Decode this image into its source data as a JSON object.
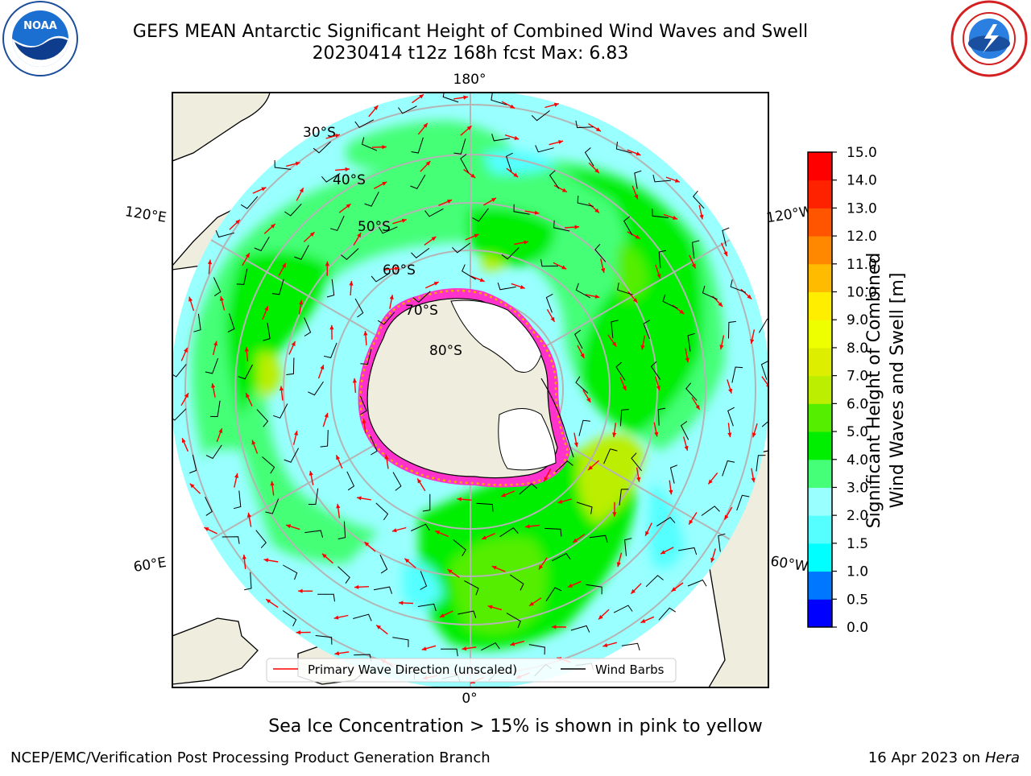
{
  "title": {
    "line1": "GEFS MEAN Antarctic Significant Height of Combined Wind Waves and Swell",
    "line2": "20230414 t12z 168h fcst   Max: 6.83"
  },
  "logos": {
    "left": {
      "icon": "noaa-logo",
      "text": "NOAA",
      "ring_text": "NATIONAL OCEANIC AND ATMOSPHERIC ADMINISTRATION · U.S. DEPARTMENT OF COMMERCE"
    },
    "right": {
      "icon": "nws-logo",
      "ring_text": "NATIONAL WEATHER SERVICE"
    }
  },
  "map": {
    "projection": "south-polar-stereographic",
    "longitude_labels": [
      "180°",
      "120°E",
      "120°W",
      "60°E",
      "60°W",
      "0°"
    ],
    "latitude_labels": [
      "30°S",
      "40°S",
      "50°S",
      "60°S",
      "70°S",
      "80°S"
    ],
    "land_color": "#efedde",
    "ice_shelf_color": "#ffffff",
    "sea_ice_colors": [
      "#ff33cc",
      "#ffa500",
      "#ffff66"
    ]
  },
  "legend": {
    "wave_label": "Primary Wave Direction (unscaled)",
    "wind_label": "Wind Barbs",
    "wave_color": "#ff0000",
    "wind_color": "#000000"
  },
  "colorbar": {
    "label_line1": "Significant Height of Combined",
    "label_line2": "Wind Waves and Swell [m]",
    "ticks": [
      "0.0",
      "0.5",
      "1.0",
      "1.5",
      "2.0",
      "3.0",
      "4.0",
      "5.0",
      "6.0",
      "7.0",
      "8.0",
      "9.0",
      "10.0",
      "11.0",
      "12.0",
      "13.0",
      "14.0",
      "15.0"
    ],
    "colors": [
      "#0000ff",
      "#0077ff",
      "#00ffff",
      "#55ffff",
      "#99ffff",
      "#44ff77",
      "#00ee00",
      "#55ee00",
      "#bbee00",
      "#ddee00",
      "#eeff00",
      "#ffee00",
      "#ffbb00",
      "#ff8800",
      "#ff5500",
      "#ff2200",
      "#ff0000"
    ]
  },
  "caption": "Sea Ice Concentration > 15% is shown in pink to yellow",
  "footer": {
    "left": "NCEP/EMC/Verification Post Processing Product Generation Branch",
    "right_date": "16 Apr 2023 on",
    "right_host": "Hera"
  }
}
